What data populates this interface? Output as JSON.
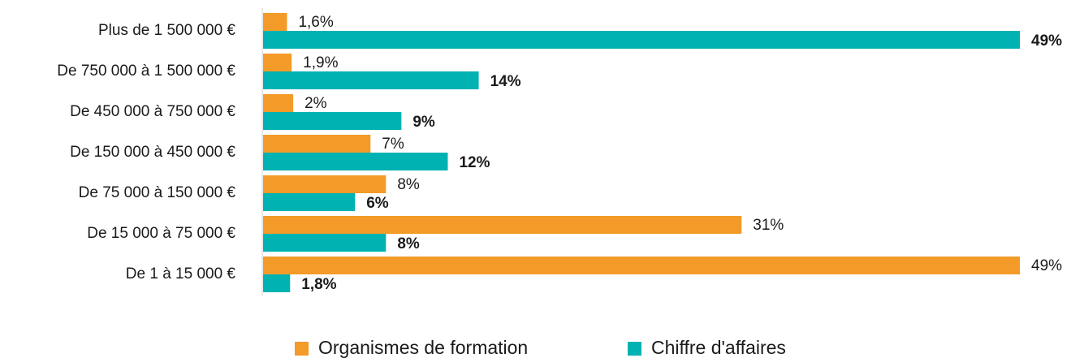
{
  "chart_data": {
    "type": "hbar",
    "categories": [
      "Plus de 1 500 000 €",
      "De 750 000 à 1 500 000 €",
      "De 450 000 à 750 000 €",
      "De 150 000 à 450 000 €",
      "De 75 000 à 150 000 €",
      "De 15 000 à 75 000 €",
      "De 1 à 15 000 €"
    ],
    "series": [
      {
        "name": "Organismes de formation",
        "color": "#f39a28",
        "values": [
          1.6,
          1.9,
          2,
          7,
          8,
          31,
          49
        ],
        "value_labels": [
          "1,6%",
          "1,9%",
          "2%",
          "7%",
          "8%",
          "31%",
          "49%"
        ]
      },
      {
        "name": "Chiffre d'affaires",
        "color": "#00b2b2",
        "values": [
          49,
          14,
          9,
          12,
          6,
          8,
          1.8
        ],
        "value_labels": [
          "49%",
          "14%",
          "9%",
          "12%",
          "6%",
          "8%",
          "1,8%"
        ]
      }
    ]
  }
}
